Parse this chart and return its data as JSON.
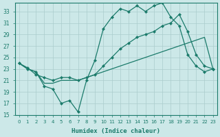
{
  "xlabel": "Humidex (Indice chaleur)",
  "background_color": "#cce8e8",
  "grid_color": "#aacccc",
  "line_color": "#1a7a6a",
  "xlim": [
    -0.5,
    23.5
  ],
  "ylim": [
    15,
    34.5
  ],
  "yticks": [
    15,
    17,
    19,
    21,
    23,
    25,
    27,
    29,
    31,
    33
  ],
  "xticks": [
    0,
    1,
    2,
    3,
    4,
    5,
    6,
    7,
    8,
    9,
    10,
    11,
    12,
    13,
    14,
    15,
    16,
    17,
    18,
    19,
    20,
    21,
    22,
    23
  ],
  "line1_x": [
    0,
    1,
    2,
    3,
    4,
    5,
    6,
    7,
    8,
    9,
    10,
    11,
    12,
    13,
    14,
    15,
    16,
    17,
    18,
    19,
    20,
    21,
    22,
    23
  ],
  "line1_y": [
    24.0,
    23.0,
    22.5,
    20.0,
    19.5,
    17.0,
    17.5,
    15.5,
    21.0,
    24.5,
    30.0,
    32.0,
    33.5,
    33.0,
    34.0,
    33.0,
    34.0,
    34.5,
    32.0,
    30.5,
    25.5,
    23.5,
    22.5,
    23.0
  ],
  "line2_x": [
    0,
    1,
    2,
    3,
    4,
    5,
    6,
    7,
    8,
    9,
    10,
    11,
    12,
    13,
    14,
    15,
    16,
    17,
    18,
    19,
    20,
    21,
    22,
    23
  ],
  "line2_y": [
    24.0,
    23.2,
    22.0,
    21.5,
    21.0,
    21.5,
    21.5,
    21.0,
    21.5,
    22.0,
    23.5,
    25.0,
    26.5,
    27.5,
    28.5,
    29.0,
    29.5,
    30.5,
    31.0,
    32.5,
    29.5,
    25.5,
    23.5,
    23.0
  ],
  "line3_x": [
    0,
    1,
    2,
    3,
    4,
    5,
    6,
    7,
    8,
    9,
    10,
    11,
    12,
    13,
    14,
    15,
    16,
    17,
    18,
    19,
    20,
    21,
    22,
    23
  ],
  "line3_y": [
    24.0,
    23.0,
    22.5,
    20.5,
    20.5,
    21.0,
    21.0,
    21.0,
    21.5,
    22.0,
    22.5,
    23.0,
    23.5,
    24.0,
    24.5,
    25.0,
    25.5,
    26.0,
    26.5,
    27.0,
    27.5,
    28.0,
    28.5,
    23.0
  ]
}
